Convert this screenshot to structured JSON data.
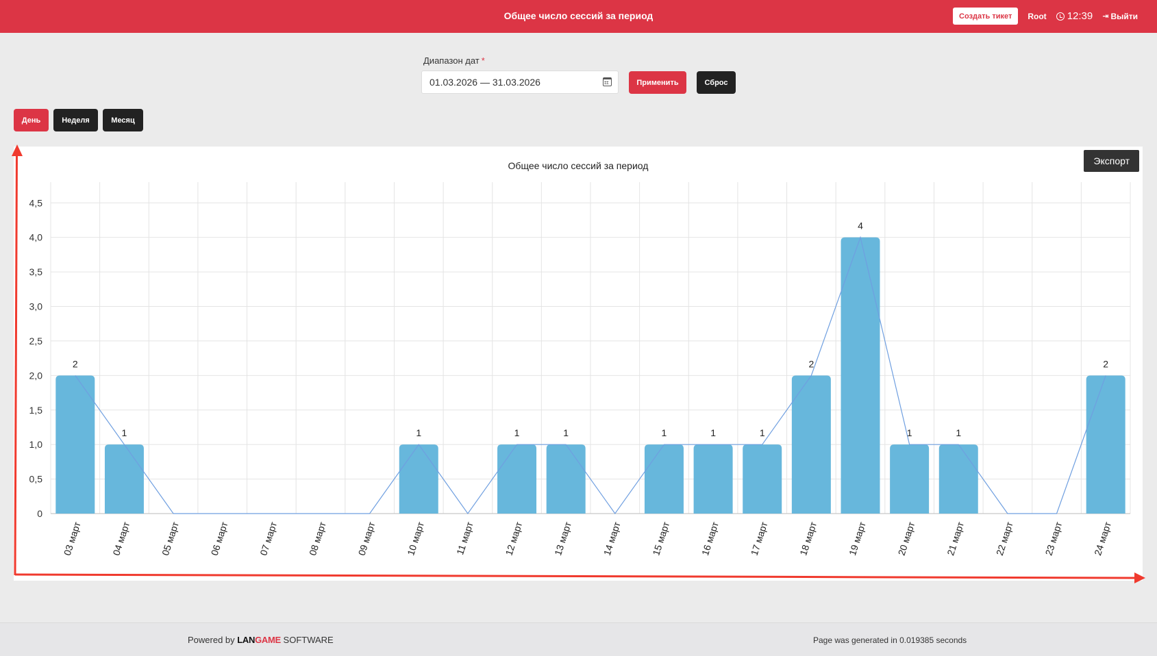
{
  "header": {
    "title": "Общее число сессий за период",
    "ticket_button": "Создать тикет",
    "user": "Root",
    "time": "12:39",
    "logout": "Выйти"
  },
  "filter": {
    "label": "Диапазон дат",
    "required_mark": "*",
    "date_range": "01.03.2026 — 31.03.2026",
    "apply_button": "Применить",
    "reset_button": "Сброс"
  },
  "period_tabs": [
    {
      "label": "День",
      "active": true
    },
    {
      "label": "Неделя",
      "active": false
    },
    {
      "label": "Месяц",
      "active": false
    }
  ],
  "chart": {
    "export_button": "Экспорт"
  },
  "chart_data": {
    "type": "bar",
    "title": "Общее число сессий за период",
    "categories": [
      "03 март",
      "04 март",
      "05 март",
      "06 март",
      "07 март",
      "08 март",
      "09 март",
      "10 март",
      "11 март",
      "12 март",
      "13 март",
      "14 март",
      "15 март",
      "16 март",
      "17 март",
      "18 март",
      "19 март",
      "20 март",
      "21 март",
      "22 март",
      "23 март",
      "24 март"
    ],
    "values": [
      2,
      1,
      0,
      0,
      0,
      0,
      0,
      1,
      0,
      1,
      1,
      0,
      1,
      1,
      1,
      2,
      4,
      1,
      1,
      0,
      0,
      2
    ],
    "data_labels": [
      "2",
      "1",
      "",
      "",
      "",
      "",
      "",
      "1",
      "",
      "1",
      "1",
      "",
      "1",
      "1",
      "1",
      "2",
      "4",
      "1",
      "1",
      "",
      "",
      "2"
    ],
    "line_overlay": true,
    "yticks": [
      "0",
      "0,5",
      "1,0",
      "1,5",
      "2,0",
      "2,5",
      "3,0",
      "3,5",
      "4,0",
      "4,5"
    ],
    "ylim": [
      0,
      4.8
    ],
    "xlabel": "",
    "ylabel": "",
    "grid": true,
    "bar_color": "#67b7dc",
    "line_color": "#6f9fe0"
  },
  "footer": {
    "powered_by": "Powered by",
    "brand_a": "LAN",
    "brand_b": "GAME",
    "brand_suffix": "SOFTWARE",
    "generated": "Page was generated in 0.019385 seconds"
  },
  "colors": {
    "accent": "#dc3545",
    "dark_button": "#222222",
    "annotation_arrow": "#f03a2e"
  }
}
